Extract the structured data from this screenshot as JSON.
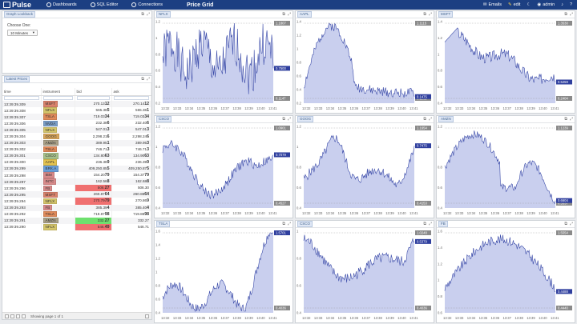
{
  "topbar": {
    "app_name": "Pulse",
    "nav": [
      {
        "label": "Dashboards",
        "icon": "dashboard-icon"
      },
      {
        "label": "SQL Editor",
        "icon": "sql-editor-icon"
      },
      {
        "label": "Connections",
        "icon": "connections-icon"
      }
    ],
    "page_title": "Price Grid",
    "emails_label": "Emails",
    "edit_label": "edit",
    "user_label": "admin"
  },
  "lookback": {
    "tag": "Graph Lookback",
    "choose_label": "Choose One:",
    "selected": "10 Minutes"
  },
  "prices": {
    "tag": "Latest Prices",
    "columns": [
      "time",
      "instrument",
      "bid",
      "ask"
    ],
    "footer": "Showing page 1 of 1",
    "rows": [
      {
        "time": "13:39:39.309",
        "instrument": "MSFT",
        "color": "#d9826c",
        "bid": "270.13",
        "bid_b": "12",
        "ask": "270.14",
        "ask_b": "12"
      },
      {
        "time": "13:39:39.308",
        "instrument": "NFLX",
        "color": "#d4c56a",
        "bid": "565.38",
        "bid_b": "5",
        "ask": "565.38",
        "ask_b": "1"
      },
      {
        "time": "13:39:39.307",
        "instrument": "TSLA",
        "color": "#e08a5a",
        "bid": "719.03",
        "bid_b": "34",
        "ask": "719.03",
        "ask_b": "34"
      },
      {
        "time": "13:39:39.306",
        "instrument": "NVDA",
        "color": "#7a9ec8",
        "bid": "232.38",
        "bid_b": "6",
        "ask": "232.40",
        "ask_b": "6"
      },
      {
        "time": "13:39:39.305",
        "instrument": "NFLX",
        "color": "#d4c56a",
        "bid": "547.01",
        "bid_b": "3",
        "ask": "547.01",
        "ask_b": "3"
      },
      {
        "time": "13:39:39.304",
        "instrument": "GOOG",
        "color": "#d8a65c",
        "bid": "2,298.21",
        "bid_b": "6",
        "ask": "2,298.24",
        "ask_b": "6"
      },
      {
        "time": "13:39:39.303",
        "instrument": "AMZN",
        "color": "#a9a087",
        "bid": "389.95",
        "bid_b": "1",
        "ask": "389.95",
        "ask_b": "3"
      },
      {
        "time": "13:39:39.302",
        "instrument": "TSLA",
        "color": "#e08a5a",
        "bid": "746.71",
        "bid_b": "3",
        "ask": "746.71",
        "ask_b": "3"
      },
      {
        "time": "13:39:39.301",
        "instrument": "CSCO",
        "color": "#a6c08a",
        "bid": "134.80",
        "bid_b": "63",
        "ask": "134.90",
        "ask_b": "63"
      },
      {
        "time": "13:39:39.300",
        "instrument": "AAPL",
        "color": "#e3c24f",
        "bid": "236.38",
        "bid_b": "9",
        "ask": "236.39",
        "ask_b": "9"
      },
      {
        "time": "13:39:39.299",
        "instrument": "BRK.A",
        "color": "#6a9fd8",
        "bid": "409,250.85",
        "bid_b": "5",
        "ask": "409,250.87",
        "ask_b": "5"
      },
      {
        "time": "13:39:39.298",
        "instrument": "IBM",
        "color": "#d88a8a",
        "bid": "154.20",
        "bid_b": "79",
        "ask": "154.37",
        "ask_b": "79"
      },
      {
        "time": "13:39:39.297",
        "instrument": "INTC",
        "color": "#d88a8a",
        "bid": "162.56",
        "bid_b": "8",
        "ask": "162.68",
        "ask_b": "8"
      },
      {
        "time": "13:39:39.296",
        "instrument": "FB",
        "color": "#d88a8a",
        "bid": "506.",
        "bid_b": "27",
        "ask": "506.30",
        "ask_b": "",
        "hl": "#f07070"
      },
      {
        "time": "13:39:39.295",
        "instrument": "MSFT",
        "color": "#d9826c",
        "bid": "260.87",
        "bid_b": "64",
        "ask": "260.88",
        "ask_b": "64"
      },
      {
        "time": "13:39:39.294",
        "instrument": "NFLX",
        "color": "#d4c56a",
        "bid": "270.79",
        "bid_b": "79",
        "ask": "270.86",
        "ask_b": "9",
        "hl": "#f07070"
      },
      {
        "time": "13:39:39.293",
        "instrument": "FB",
        "color": "#d88a8a",
        "bid": "385.39",
        "bid_b": "4",
        "ask": "385.40",
        "ask_b": "4"
      },
      {
        "time": "13:39:39.292",
        "instrument": "TSLA",
        "color": "#e08a5a",
        "bid": "719.87",
        "bid_b": "98",
        "ask": "719.88",
        "ask_b": "98"
      },
      {
        "time": "13:39:39.291",
        "instrument": "AMZN",
        "color": "#a9a087",
        "bid": "332.",
        "bid_b": "27",
        "ask": "332.27",
        "ask_b": "",
        "hl": "#6ee06e"
      },
      {
        "time": "13:39:39.290",
        "instrument": "NFLX",
        "color": "#d4c56a",
        "bid": "546.",
        "bid_b": "49",
        "ask": "546.71",
        "ask_b": "",
        "hl": "#f07070"
      }
    ]
  },
  "charts": [
    {
      "label": "NFLX",
      "last": "0.7500",
      "hi": "1.1807",
      "lo": "0.1147",
      "ticks": [
        "13:32",
        "13:33",
        "13:34",
        "13:35",
        "13:36",
        "13:37",
        "13:38",
        "13:39",
        "13:40",
        "13:41"
      ],
      "yticks": [
        "1.2",
        "1",
        "0.8",
        "0.6",
        "0.4",
        "0.2"
      ],
      "shape": "spiky",
      "seed": 1
    },
    {
      "label": "AAPL",
      "last": "0.1475",
      "hi": "1.1115",
      "lo": "0.1162",
      "ticks": [
        "13:32",
        "13:33",
        "13:34",
        "13:35",
        "13:36",
        "13:37",
        "13:38",
        "13:39",
        "13:40",
        "13:41"
      ],
      "yticks": [
        "1.4",
        "1.2",
        "1",
        "0.8",
        "0.6",
        "0.4",
        "0.2"
      ],
      "shape": "humpEarly",
      "seed": 2
    },
    {
      "label": "MSFT",
      "last": "0.5259",
      "hi": "1.3530",
      "lo": "0.2404",
      "ticks": [
        "13:32",
        "13:33",
        "13:34",
        "13:35",
        "13:36",
        "13:37",
        "13:38",
        "13:39",
        "13:40",
        "13:41"
      ],
      "yticks": [
        "1.4",
        "1.2",
        "1",
        "0.8",
        "0.6",
        "0.4"
      ],
      "shape": "declineEarly",
      "seed": 3
    },
    {
      "label": "CSCO",
      "last": "0.7079",
      "hi": "1.0901",
      "lo": "0.4527",
      "ticks": [
        "13:32",
        "13:33",
        "13:34",
        "13:35",
        "13:36",
        "13:37",
        "13:38",
        "13:39",
        "13:40",
        "13:41"
      ],
      "yticks": [
        "1.2",
        "1",
        "0.8",
        "0.6",
        "0.4"
      ],
      "shape": "wave",
      "seed": 4
    },
    {
      "label": "GOOG",
      "last": "0.7475",
      "hi": "1.1654",
      "lo": "0.4153",
      "ticks": [
        "13:32",
        "13:33",
        "13:34",
        "13:35",
        "13:36",
        "13:37",
        "13:38",
        "13:39",
        "13:40",
        "13:41"
      ],
      "yticks": [
        "1.2",
        "1",
        "0.8",
        "0.6",
        "0.4"
      ],
      "shape": "bumpMid",
      "seed": 5
    },
    {
      "label": "AMZN",
      "last": "0.6604",
      "hi": "1.1239",
      "lo": "0.5537",
      "ticks": [
        "13:32",
        "13:33",
        "13:34",
        "13:35",
        "13:36",
        "13:37",
        "13:38",
        "13:39",
        "13:40",
        "13:41"
      ],
      "yticks": [
        "1.2",
        "1",
        "0.8",
        "0.6",
        "0.4"
      ],
      "shape": "plateau",
      "seed": 6
    },
    {
      "label": "TSLA",
      "last": "1.5701",
      "hi": "1.6844",
      "lo": "0.4036",
      "ticks": [
        "13:32",
        "13:33",
        "13:34",
        "13:35",
        "13:36",
        "13:37",
        "13:38",
        "13:39",
        "13:40",
        "13:41"
      ],
      "yticks": [
        "1.6",
        "1.4",
        "1.2",
        "1",
        "0.8",
        "0.6",
        "0.4"
      ],
      "shape": "riseLate",
      "seed": 7
    },
    {
      "label": "CSCO",
      "last": "0.5379",
      "hi": "1.0248",
      "lo": "0.4036",
      "ticks": [
        "13:32",
        "13:33",
        "13:34",
        "13:35",
        "13:36",
        "13:37",
        "13:38",
        "13:39",
        "13:40",
        "13:41"
      ],
      "yticks": [
        "1",
        "0.8",
        "0.6",
        "0.4"
      ],
      "shape": "wave2",
      "seed": 8
    },
    {
      "label": "FB",
      "last": "0.4488",
      "hi": "1.5554",
      "lo": "0.4440",
      "ticks": [
        "13:32",
        "13:33",
        "13:34",
        "13:35",
        "13:36",
        "13:37",
        "13:38",
        "13:39",
        "13:40",
        "13:41"
      ],
      "yticks": [
        "1.6",
        "1.4",
        "1.2",
        "1",
        "0.8",
        "0.6"
      ],
      "shape": "hill",
      "seed": 9
    }
  ]
}
